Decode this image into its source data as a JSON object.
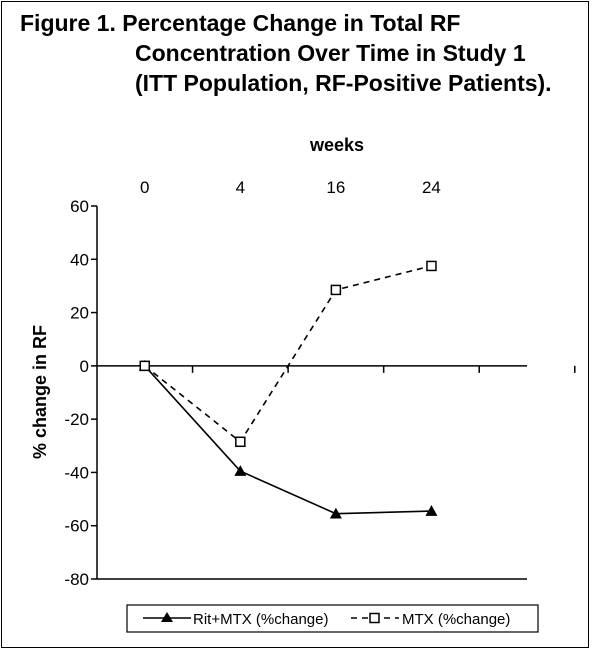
{
  "title_lines": [
    "Figure 1. Percentage Change in Total RF",
    "Concentration Over Time in Study 1",
    "(ITT Population, RF-Positive Patients)."
  ],
  "chart_data": {
    "type": "line",
    "x_axis_title": "weeks",
    "x_tick_labels": [
      "0",
      "4",
      "16",
      "24"
    ],
    "ylabel": "% change in RF",
    "ylim": [
      -80,
      60
    ],
    "y_ticks": [
      60,
      40,
      20,
      0,
      -20,
      -40,
      -60,
      -80
    ],
    "legend_position": "bottom",
    "grid": false,
    "series": [
      {
        "name": "Rit+MTX (%change)",
        "x": [
          "0",
          "4",
          "16",
          "24"
        ],
        "values": [
          0,
          -39.5,
          -55.5,
          -54.5
        ],
        "line_style": "solid",
        "marker": "filled-triangle",
        "color": "#000000"
      },
      {
        "name": "MTX (%change)",
        "x": [
          "0",
          "4",
          "16",
          "24"
        ],
        "values": [
          0,
          -28.5,
          28.5,
          37.5
        ],
        "line_style": "dashed",
        "marker": "open-square",
        "color": "#000000"
      }
    ]
  }
}
